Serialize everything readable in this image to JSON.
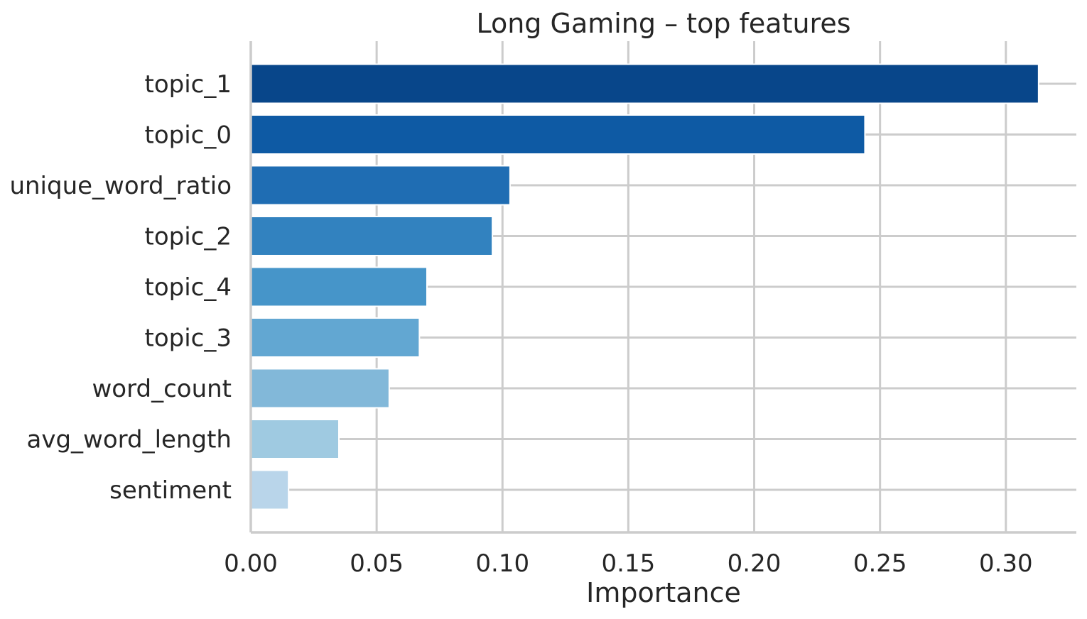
{
  "chart_data": {
    "type": "bar",
    "orientation": "horizontal",
    "title": "Long Gaming – top features",
    "xlabel": "Importance",
    "ylabel": "",
    "xlim": [
      0,
      0.328
    ],
    "xticks": [
      0.0,
      0.05,
      0.1,
      0.15,
      0.2,
      0.25,
      0.3
    ],
    "xtick_labels": [
      "0.00",
      "0.05",
      "0.10",
      "0.15",
      "0.20",
      "0.25",
      "0.30"
    ],
    "grid": true,
    "categories": [
      "topic_1",
      "topic_0",
      "unique_word_ratio",
      "topic_2",
      "topic_4",
      "topic_3",
      "word_count",
      "avg_word_length",
      "sentiment"
    ],
    "values": [
      0.313,
      0.244,
      0.103,
      0.096,
      0.07,
      0.067,
      0.055,
      0.035,
      0.015
    ],
    "colors": [
      "#08468a",
      "#0e5aa4",
      "#1f6db3",
      "#3282bf",
      "#4695c9",
      "#62a7d2",
      "#82b8d9",
      "#9fcae1",
      "#b9d5ea"
    ]
  }
}
